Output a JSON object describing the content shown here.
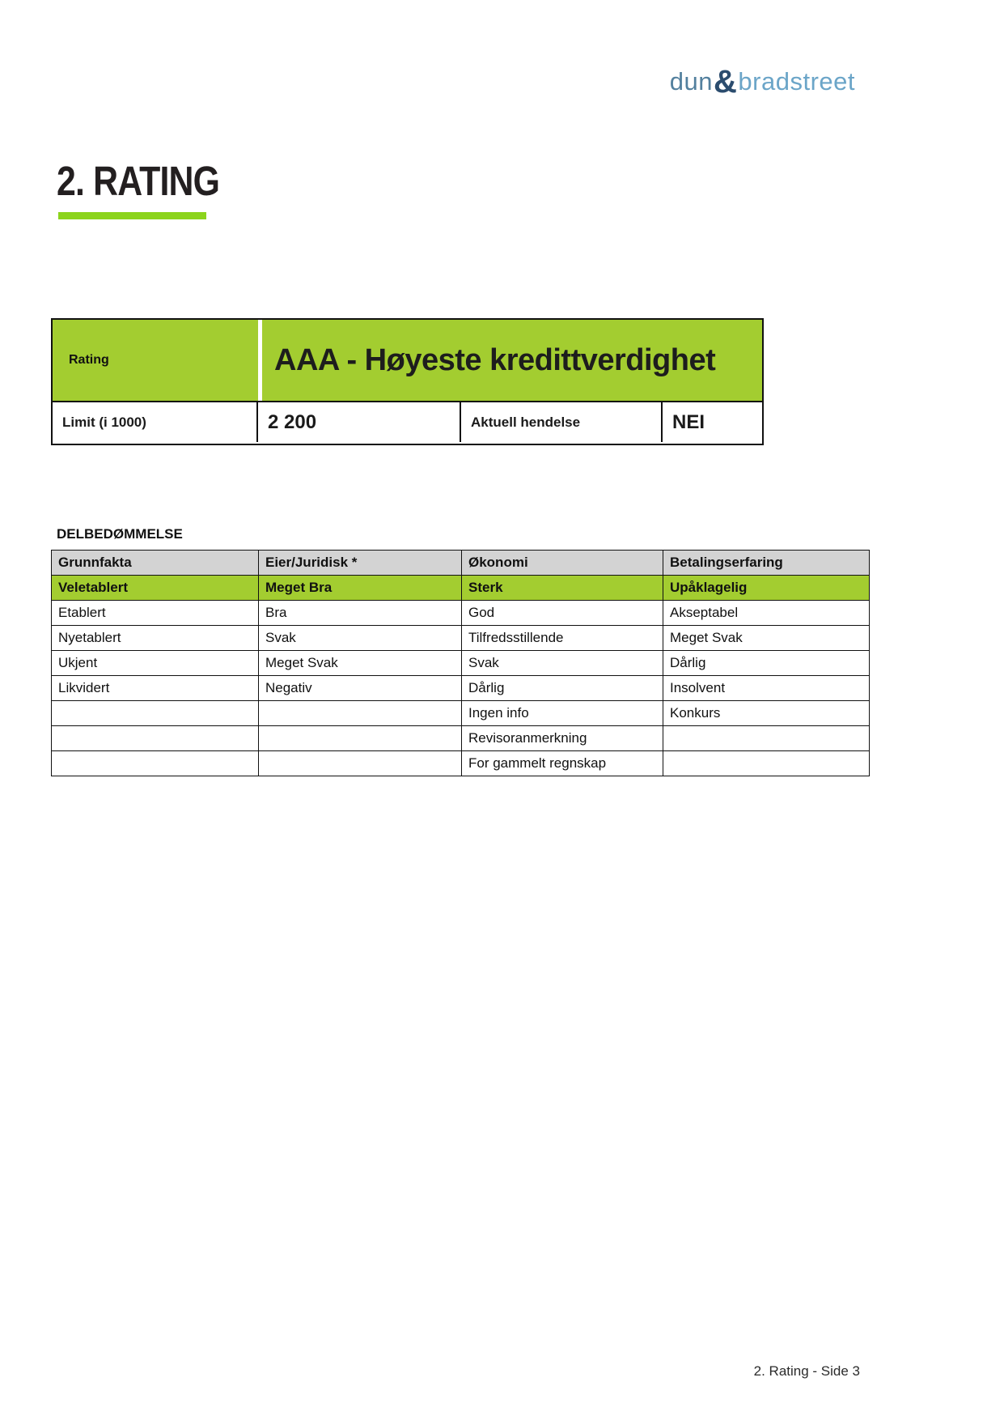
{
  "colors": {
    "green": "#A3CD30",
    "rule_green": "#8CD41C",
    "header_gray": "#D3D3D3",
    "logo_dun": "#53809E",
    "logo_amp": "#2B4C6E",
    "logo_bradstreet": "#6BA5C8"
  },
  "logo": {
    "part1": "dun",
    "amp": "&",
    "part2": "bradstreet"
  },
  "heading": {
    "title": "2. RATING"
  },
  "rating_box": {
    "rating_label": "Rating",
    "rating_value": "AAA - Høyeste kredittverdighet",
    "limit_label": "Limit (i 1000)",
    "limit_value": "2 200",
    "event_label": "Aktuell hendelse",
    "event_value": "NEI"
  },
  "delbedommelse": {
    "title": "DELBEDØMMELSE",
    "columns": [
      "Grunnfakta",
      "Eier/Juridisk *",
      "Økonomi",
      "Betalingserfaring"
    ],
    "selected": [
      "Veletablert",
      "Meget Bra",
      "Sterk",
      "Upåklagelig"
    ],
    "rows": [
      [
        "Etablert",
        "Bra",
        "God",
        "Akseptabel"
      ],
      [
        "Nyetablert",
        "Svak",
        "Tilfredsstillende",
        "Meget Svak"
      ],
      [
        "Ukjent",
        "Meget Svak",
        "Svak",
        "Dårlig"
      ],
      [
        "Likvidert",
        "Negativ",
        "Dårlig",
        "Insolvent"
      ],
      [
        "",
        "",
        "Ingen info",
        "Konkurs"
      ],
      [
        "",
        "",
        "Revisoranmerkning",
        ""
      ],
      [
        "",
        "",
        "For gammelt regnskap",
        ""
      ]
    ]
  },
  "page": {
    "footer": "2. Rating - Side 3"
  }
}
